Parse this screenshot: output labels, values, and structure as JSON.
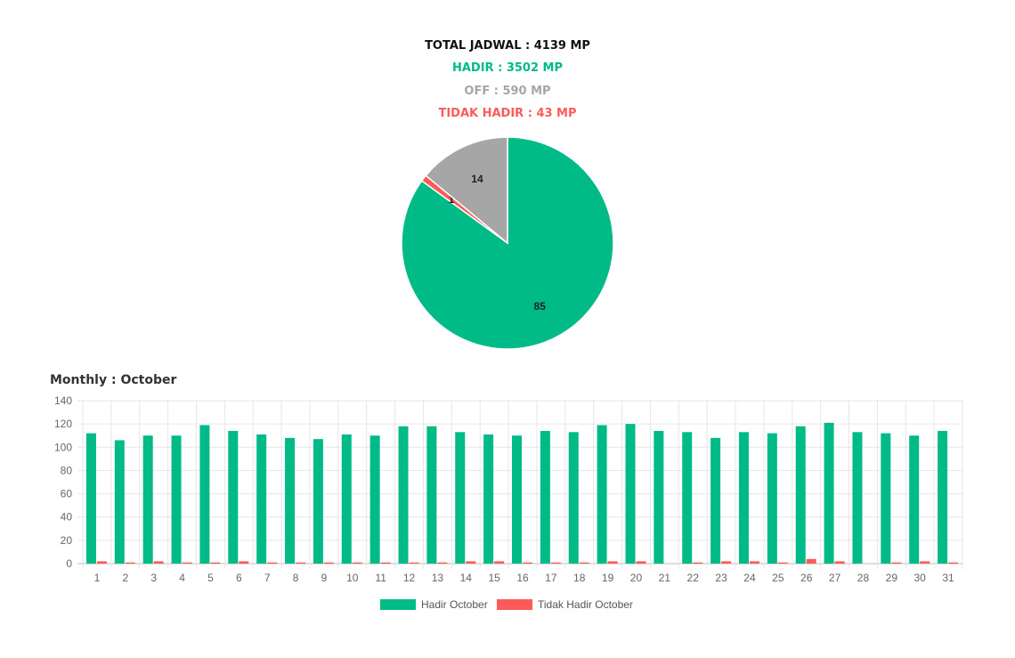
{
  "summary": {
    "total": "TOTAL JADWAL : 4139 MP",
    "hadir": "HADIR : 3502 MP",
    "off": "OFF : 590 MP",
    "tidak_hadir": "TIDAK HADIR : 43 MP"
  },
  "colors": {
    "hadir": "#00bb88",
    "off": "#a6a6a6",
    "tidak_hadir": "#ff5a5a",
    "total": "#111111"
  },
  "monthly_title": "Monthly : October",
  "chart_data": [
    {
      "type": "pie",
      "slices": [
        {
          "label": "85",
          "value": 85,
          "color": "#00bb88"
        },
        {
          "label": "1",
          "value": 1,
          "color": "#ff5a5a"
        },
        {
          "label": "14",
          "value": 14,
          "color": "#a6a6a6"
        }
      ]
    },
    {
      "type": "bar",
      "categories": [
        "1",
        "2",
        "3",
        "4",
        "5",
        "6",
        "7",
        "8",
        "9",
        "10",
        "11",
        "12",
        "13",
        "14",
        "15",
        "16",
        "17",
        "18",
        "19",
        "20",
        "21",
        "22",
        "23",
        "24",
        "25",
        "26",
        "27",
        "28",
        "29",
        "30",
        "31"
      ],
      "series": [
        {
          "name": "Hadir October",
          "color": "#00bb88",
          "values": [
            112,
            106,
            110,
            110,
            119,
            114,
            111,
            108,
            107,
            111,
            110,
            118,
            118,
            113,
            111,
            110,
            114,
            113,
            119,
            120,
            114,
            113,
            108,
            113,
            112,
            118,
            121,
            113,
            112,
            110,
            114
          ]
        },
        {
          "name": "Tidak Hadir October",
          "color": "#ff5a5a",
          "values": [
            2,
            1,
            2,
            1,
            1,
            2,
            1,
            1,
            1,
            1,
            1,
            1,
            1,
            2,
            2,
            1,
            1,
            1,
            2,
            2,
            0,
            1,
            2,
            2,
            1,
            4,
            2,
            0,
            1,
            2,
            1
          ]
        }
      ],
      "yticks": [
        "0",
        "20",
        "40",
        "60",
        "80",
        "100",
        "120",
        "140"
      ],
      "ylim": [
        0,
        140
      ],
      "grid": true,
      "legend": "bottom"
    }
  ]
}
